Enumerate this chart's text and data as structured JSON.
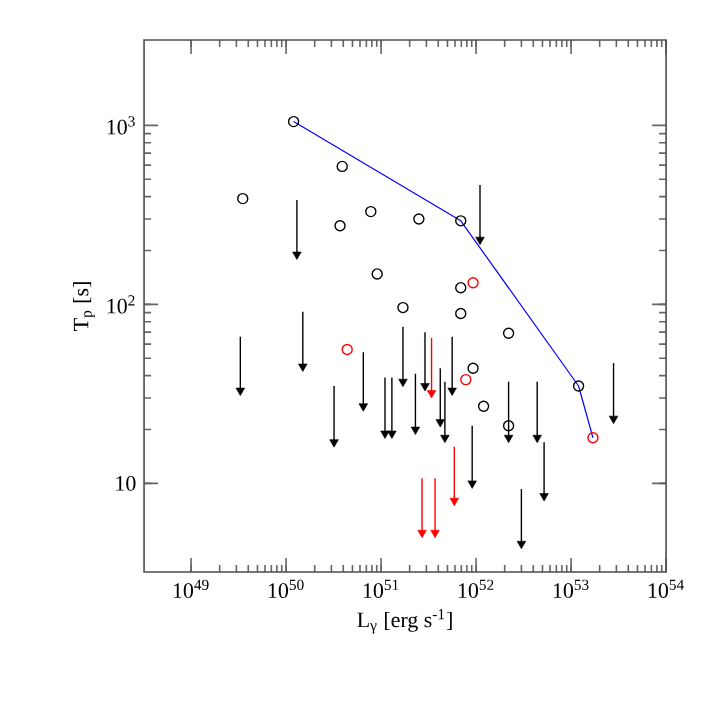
{
  "chart_data": {
    "type": "scatter",
    "xlabel": "L$_{γ}$ [erg s$^{-1}$]",
    "ylabel": "T$_{p}$ [s]",
    "log": "xy",
    "grid": false,
    "xlim": [
      3.2e+48,
      1e+54
    ],
    "ylim": [
      3.2,
      3000
    ],
    "xticks": [
      {
        "value": 1e+49,
        "label": "10$^{49}$"
      },
      {
        "value": 1e+50,
        "label": "10$^{50}$"
      },
      {
        "value": 1e+51,
        "label": "10$^{51}$"
      },
      {
        "value": 1e+52,
        "label": "10$^{52}$"
      },
      {
        "value": 1e+53,
        "label": "10$^{53}$"
      },
      {
        "value": 1e+54,
        "label": "10$^{54}$"
      }
    ],
    "yticks": [
      10,
      {
        "value": 100,
        "label": "10$^{2}$"
      },
      {
        "value": 1000,
        "label": "10$^{3}$"
      }
    ],
    "series": [
      {
        "marker": "circle",
        "color": "#000000",
        "x": [
          1.2e+50,
          3.5e+49,
          3.9e+50,
          3.7e+50,
          7.8e+50,
          2.5e+51,
          6.9e+51,
          9.1e+50,
          6.9e+51,
          1.7e+51,
          6.9e+51,
          2.2e+52,
          9.3e+51,
          1.2e+52,
          2.2e+52,
          1.2e+53
        ],
        "values": [
          1050,
          390,
          590,
          275,
          330,
          300,
          293,
          148,
          124,
          96,
          89,
          69,
          44,
          27,
          21,
          35
        ]
      },
      {
        "marker": "circle",
        "color": "#ff0000",
        "x": [
          9.3e+51,
          4.4e+50,
          7.8e+51,
          1.7e+53
        ],
        "values": [
          132,
          56,
          38,
          18
        ]
      },
      {
        "marker": "triangle",
        "color": "#000000",
        "x": [
          1.3e+50,
          1.1e+52,
          3.3e+49,
          1.5e+50,
          3.2e+50,
          6.5e+50,
          1.1e+51,
          1.3e+51,
          1.7e+51,
          2.3e+51,
          2.9e+51,
          4.2e+51,
          4.7e+51,
          5.6e+51,
          9.1e+51,
          2.2e+52,
          4.4e+52,
          5.2e+52,
          3e+52,
          2.8e+53
        ],
        "values": [
          190,
          230,
          33,
          45,
          17,
          27,
          19,
          19,
          37,
          20,
          35,
          22,
          18,
          33,
          10,
          18,
          18,
          8.5,
          4.6,
          23
        ],
        "errors": [
          [
            190,
            383
          ],
          [
            230,
            465
          ],
          [
            33,
            66
          ],
          [
            45,
            91
          ],
          [
            17,
            35
          ],
          [
            27,
            54
          ],
          [
            19,
            39
          ],
          [
            19,
            39
          ],
          [
            37,
            75
          ],
          [
            20,
            41
          ],
          [
            35,
            70
          ],
          [
            22,
            44
          ],
          [
            18,
            37
          ],
          [
            33,
            66
          ],
          [
            10,
            21
          ],
          [
            18,
            37
          ],
          [
            18,
            37
          ],
          [
            8.5,
            17
          ],
          [
            4.6,
            9.3
          ],
          [
            23,
            47
          ]
        ]
      },
      {
        "marker": "triangle",
        "color": "#ff0000",
        "x": [
          3.4e+51,
          5.9e+51,
          2.7e+51,
          3.7e+51
        ],
        "values": [
          32,
          8,
          5.3,
          5.3
        ],
        "errors": [
          [
            32,
            65
          ],
          [
            8,
            16
          ],
          [
            5.3,
            10.7
          ],
          [
            5.3,
            10.7
          ]
        ]
      },
      {
        "type": "line",
        "marker": "none",
        "color": "#0000ff",
        "x": [
          1.2e+50,
          6.9e+51,
          1.2e+53,
          1.7e+53
        ],
        "values": [
          1050,
          293,
          35,
          18
        ]
      }
    ]
  }
}
